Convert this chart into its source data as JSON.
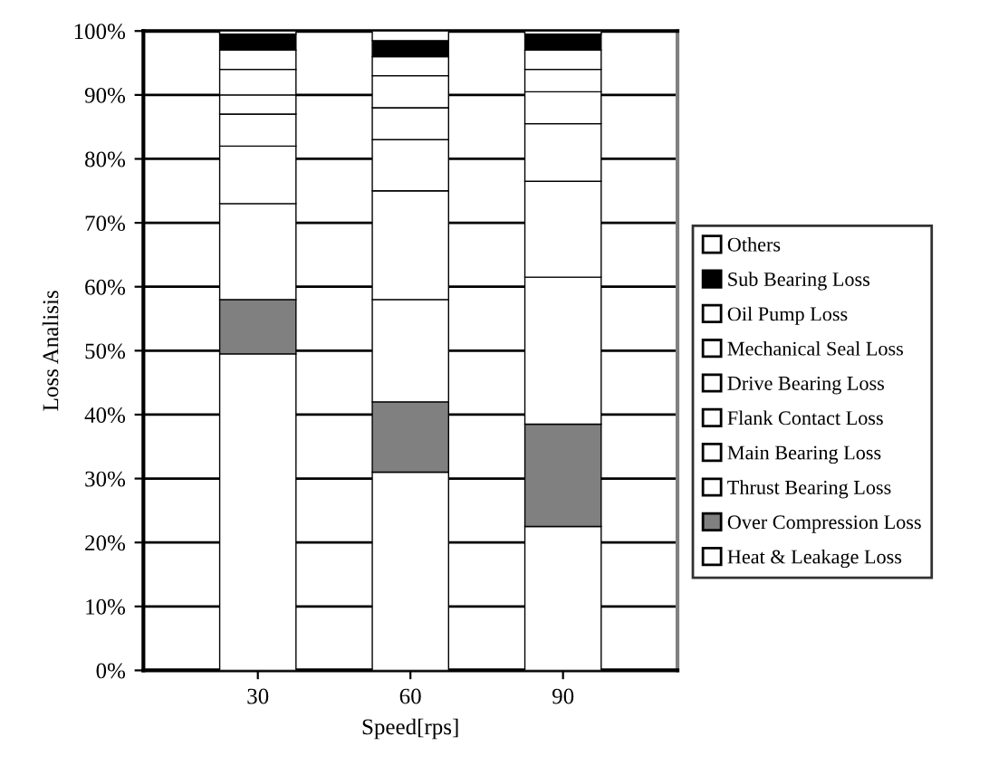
{
  "chart_data": {
    "type": "bar",
    "stacked": true,
    "xlabel": "Speed[rps]",
    "ylabel": "Loss Analisis",
    "categories": [
      "30",
      "60",
      "90"
    ],
    "series": [
      {
        "name": "Heat & Leakage Loss",
        "color": "#ffffff",
        "values": [
          49.5,
          31,
          22.5
        ]
      },
      {
        "name": "Over Compression Loss",
        "color": "#808080",
        "values": [
          8.5,
          11,
          16
        ]
      },
      {
        "name": "Thrust Bearing Loss",
        "color": "#ffffff",
        "values": [
          15,
          16,
          23
        ]
      },
      {
        "name": "Main Bearing Loss",
        "color": "#ffffff",
        "values": [
          9,
          17,
          15
        ]
      },
      {
        "name": "Flank Contact Loss",
        "color": "#ffffff",
        "values": [
          5,
          8,
          9
        ]
      },
      {
        "name": "Drive Bearing Loss",
        "color": "#ffffff",
        "values": [
          3,
          5,
          5
        ]
      },
      {
        "name": "Mechanical Seal Loss",
        "color": "#ffffff",
        "values": [
          4,
          5,
          3.5
        ]
      },
      {
        "name": "Oil Pump Loss",
        "color": "#ffffff",
        "values": [
          3,
          3,
          3
        ]
      },
      {
        "name": "Sub Bearing Loss",
        "color": "#000000",
        "values": [
          2.5,
          2.5,
          2.5
        ]
      },
      {
        "name": "Others",
        "color": "#ffffff",
        "values": [
          0.5,
          1.5,
          0.5
        ]
      }
    ],
    "ylim": [
      0,
      100
    ],
    "yticks": [
      {
        "value": 0,
        "label": "0%"
      },
      {
        "value": 10,
        "label": "10%"
      },
      {
        "value": 20,
        "label": "20%"
      },
      {
        "value": 30,
        "label": "30%"
      },
      {
        "value": 40,
        "label": "40%"
      },
      {
        "value": 50,
        "label": "50%"
      },
      {
        "value": 60,
        "label": "60%"
      },
      {
        "value": 70,
        "label": "70%"
      },
      {
        "value": 80,
        "label": "80%"
      },
      {
        "value": 90,
        "label": "90%"
      },
      {
        "value": 100,
        "label": "100%"
      }
    ],
    "grid": "y",
    "legend": "right"
  }
}
